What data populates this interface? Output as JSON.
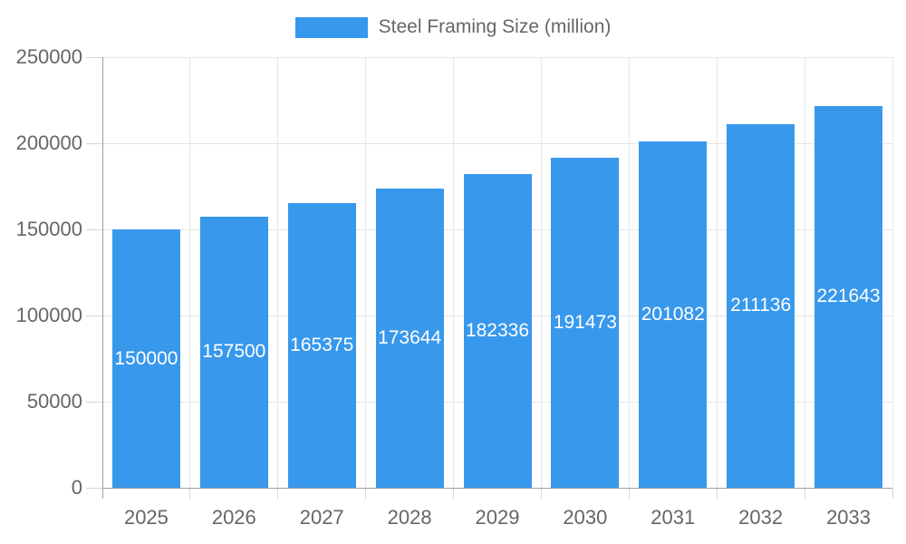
{
  "legend": {
    "label": "Steel Framing Size (million)",
    "swatch_color": "#3898ec"
  },
  "chart_data": {
    "type": "bar",
    "title": "Steel Framing Size (million)",
    "categories": [
      "2025",
      "2026",
      "2027",
      "2028",
      "2029",
      "2030",
      "2031",
      "2032",
      "2033"
    ],
    "series": [
      {
        "name": "Steel Framing Size (million)",
        "values": [
          150000,
          157500,
          165375,
          173644,
          182336,
          191473,
          201082,
          211136,
          221643
        ]
      }
    ],
    "value_labels": [
      "150000",
      "157500",
      "165375",
      "173644",
      "182336",
      "191473",
      "201082",
      "211136",
      "221643"
    ],
    "xlabel": "",
    "ylabel": "",
    "ylim": [
      0,
      250000
    ],
    "ytick_step": 50000,
    "yticks": [
      "0",
      "50000",
      "100000",
      "150000",
      "200000",
      "250000"
    ],
    "grid": true,
    "legend_position": "top",
    "bar_color": "#3898ec",
    "value_label_color": "#ffffff",
    "axis_text_color": "#666666"
  }
}
